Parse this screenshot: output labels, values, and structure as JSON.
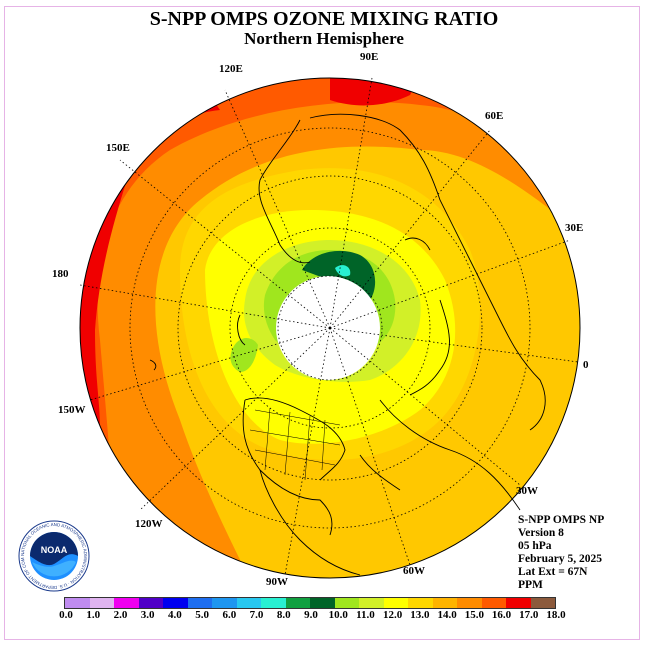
{
  "title": "S-NPP OMPS OZONE MIXING RATIO",
  "subtitle": "Northern Hemisphere",
  "longitude_labels": [
    "90E",
    "60E",
    "30E",
    "0",
    "30W",
    "60W",
    "90W",
    "120W",
    "150W",
    "180",
    "150E",
    "120E"
  ],
  "info": {
    "instrument": "S-NPP OMPS NP",
    "version": "Version 8",
    "pressure": "05 hPa",
    "date": "February 5, 2025",
    "lat_ext": "Lat Ext = 67N",
    "units": "PPM"
  },
  "logo": {
    "text": "NOAA",
    "ring_text": "NATIONAL OCEANIC AND ATMOSPHERIC ADMINISTRATION · U.S. DEPARTMENT OF COMMERCE"
  },
  "colorbar": {
    "colors": [
      "#c08cf0",
      "#e0b4f0",
      "#f000f0",
      "#5000c8",
      "#0000f0",
      "#1e6ef0",
      "#1e96f0",
      "#28c8f0",
      "#28f0d2",
      "#10a040",
      "#006428",
      "#a0e61e",
      "#d2f028",
      "#ffff00",
      "#ffd700",
      "#ffb400",
      "#ff8c00",
      "#ff5a00",
      "#f00000",
      "#8c5a3c"
    ],
    "tick_labels": [
      "0.0",
      "1.0",
      "2.0",
      "3.0",
      "4.0",
      "5.0",
      "6.0",
      "7.0",
      "8.0",
      "9.0",
      "10.0",
      "11.0",
      "12.0",
      "13.0",
      "14.0",
      "15.0",
      "16.0",
      "17.0",
      "18.0"
    ]
  }
}
